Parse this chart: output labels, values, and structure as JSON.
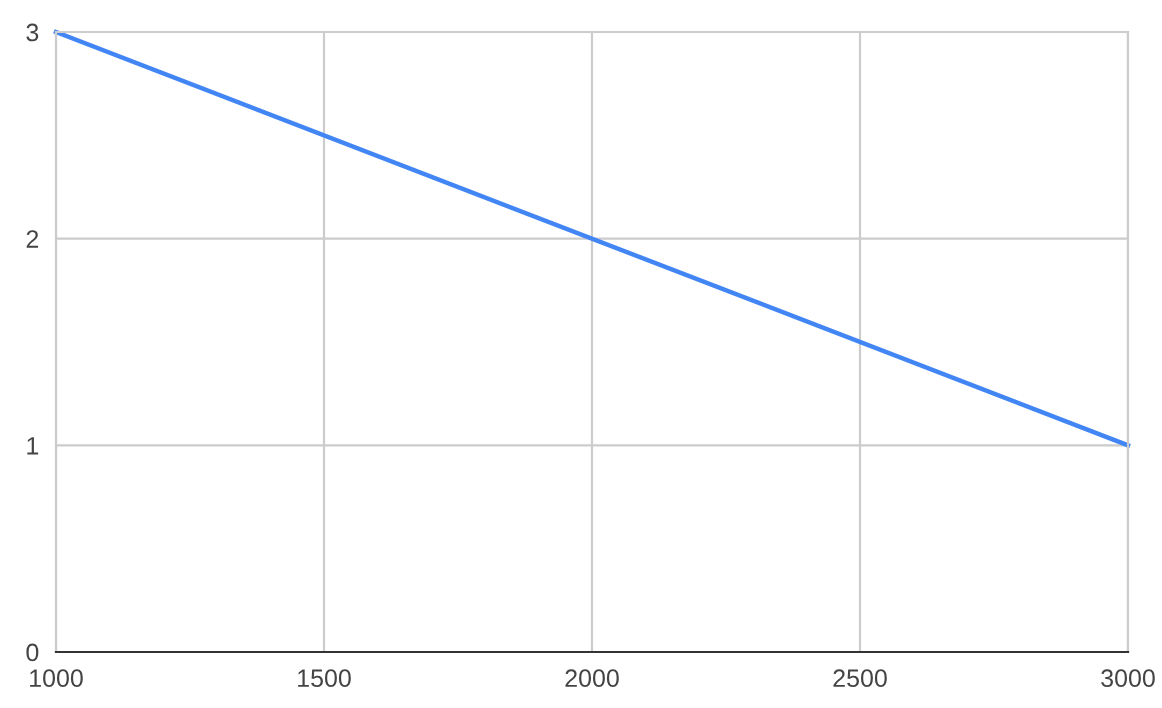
{
  "chart_data": {
    "type": "line",
    "x": [
      1000,
      3000
    ],
    "series": [
      {
        "color": "#4285f4",
        "values": [
          3,
          1
        ]
      }
    ],
    "xlim": [
      1000,
      3000
    ],
    "xticks": [
      1000,
      1500,
      2000,
      2500,
      3000
    ],
    "ylim": [
      0,
      3
    ],
    "yticks": [
      0,
      1,
      2,
      3
    ],
    "grid": true,
    "marker": "none",
    "line_style": "solid"
  }
}
